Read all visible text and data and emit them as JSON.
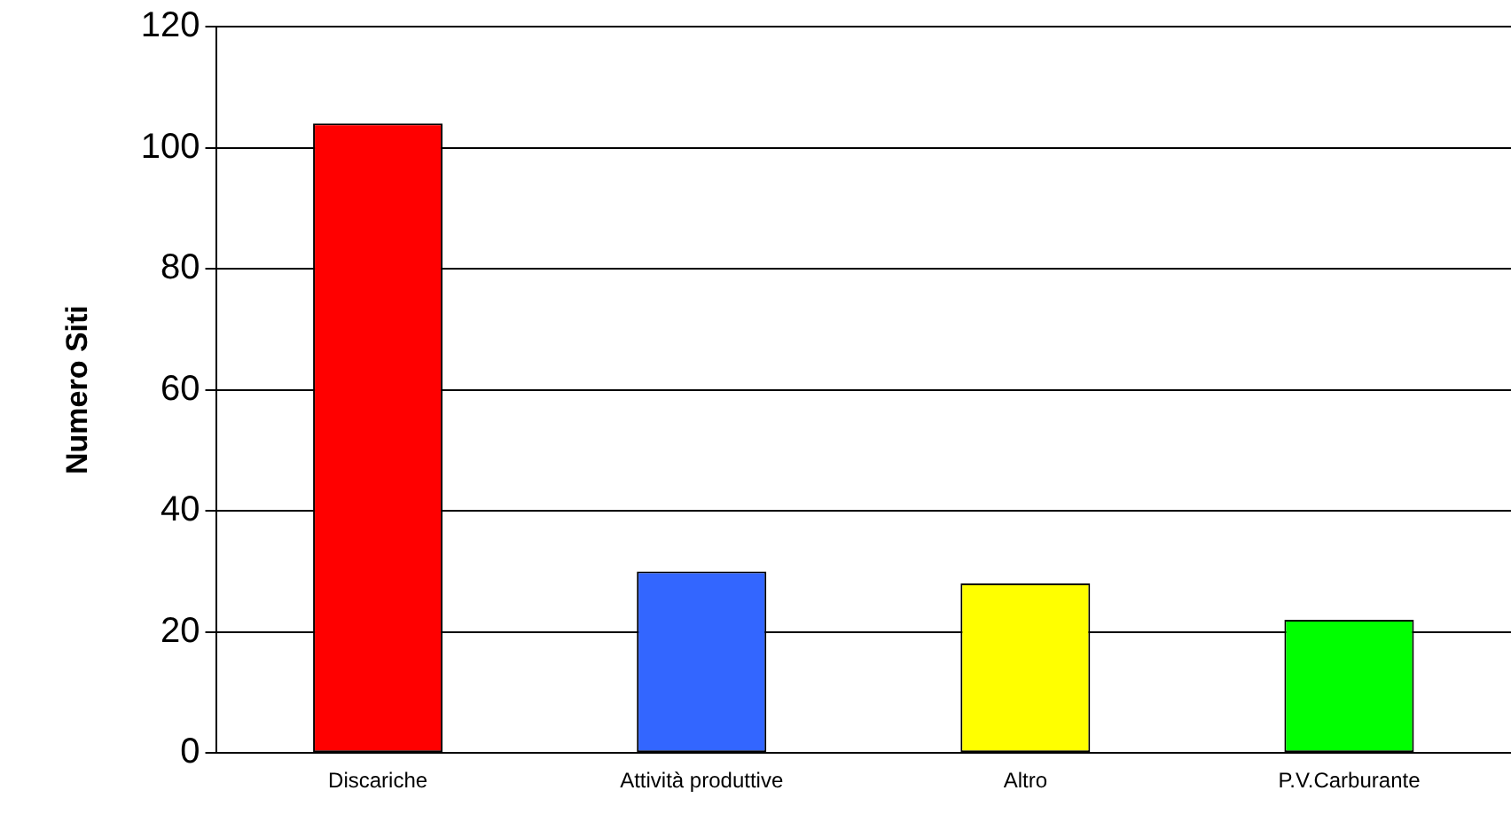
{
  "chart_data": {
    "type": "bar",
    "ylabel": "Numero Siti",
    "categories": [
      "Discariche",
      "Attività produttive",
      "Altro",
      "P.V.Carburante"
    ],
    "values": [
      104,
      30,
      28,
      22
    ],
    "colors": [
      "#ff0000",
      "#3366ff",
      "#ffff00",
      "#00ff00"
    ],
    "ylim": [
      0,
      120
    ],
    "yticks": [
      0,
      20,
      40,
      60,
      80,
      100,
      120
    ],
    "grid": "y"
  }
}
